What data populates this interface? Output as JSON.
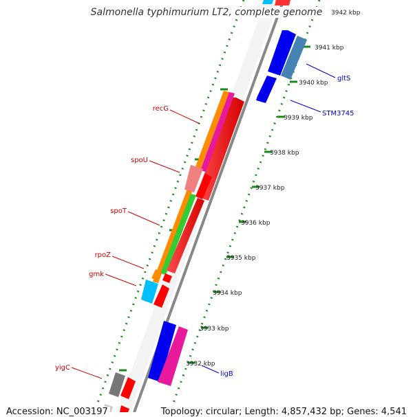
{
  "title": "Salmonella typhimurium LT2, complete genome",
  "footer": {
    "accession": "Accession: NC_003197",
    "topology": "Topology: circular; Length: 4,857,432 bp; Genes: 4,541"
  },
  "ticks": [
    {
      "label": "3942 kbp"
    },
    {
      "label": "3941 kbp"
    },
    {
      "label": "3940 kbp"
    },
    {
      "label": "3939 kbp"
    },
    {
      "label": "3938 kbp"
    },
    {
      "label": "3937 kbp"
    },
    {
      "label": "3936 kbp"
    },
    {
      "label": "3935 kbp"
    },
    {
      "label": "3934 kbp"
    },
    {
      "label": "3933 kbp"
    },
    {
      "label": "3932 kbp"
    }
  ],
  "gene_labels": {
    "left": [
      "recG",
      "spoU",
      "spoT",
      "rpoZ",
      "gmk",
      "yigC"
    ],
    "right": [
      "gltS",
      "STM3745",
      "ligB"
    ]
  },
  "colors": {
    "left_label": "#cc0000",
    "right_label": "#0000cc",
    "backbone": "#888888",
    "tick_dots": "#1a8a1a",
    "red": "#ff0000",
    "orange": "#ff8c00",
    "magenta": "#e8199a",
    "pink": "#f08080",
    "green": "#33cc33",
    "cyan": "#00bfff",
    "blue": "#0000ee",
    "steel": "#4682b4",
    "gray": "#777777"
  }
}
